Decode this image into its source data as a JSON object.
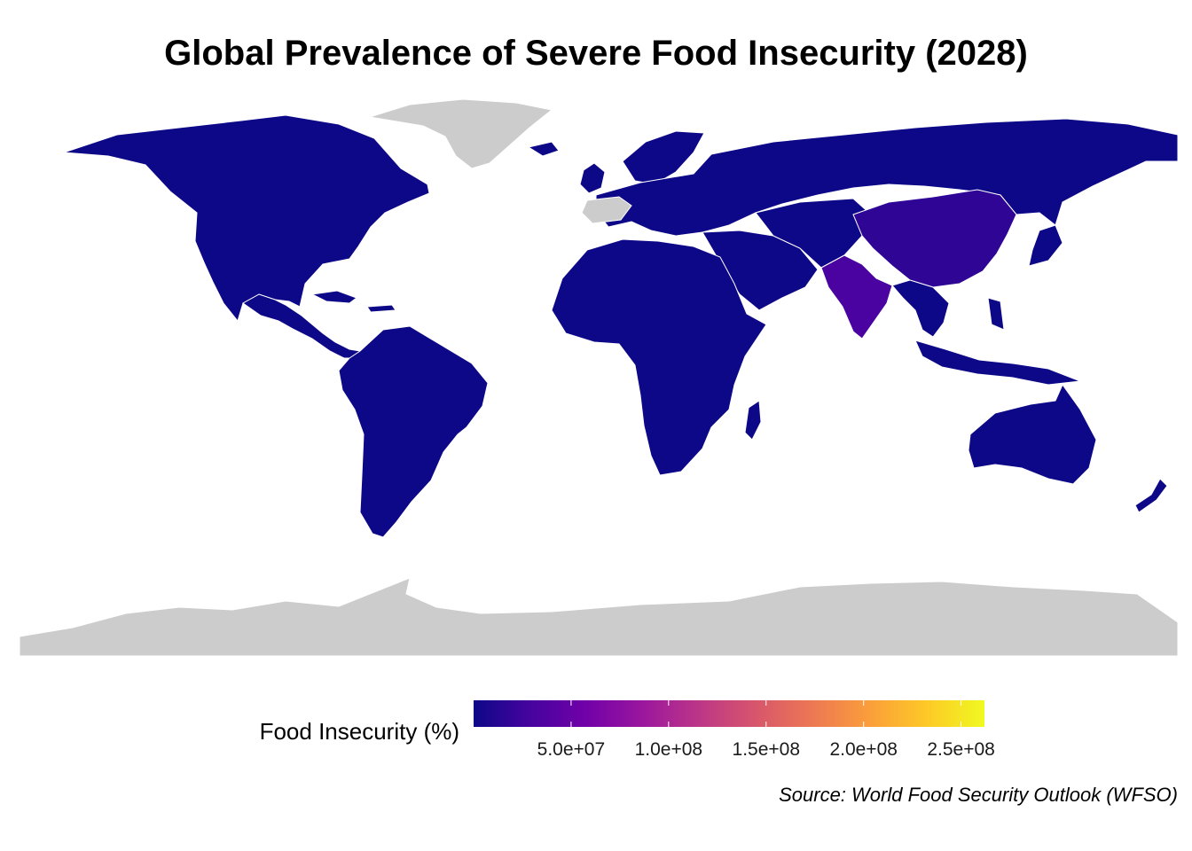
{
  "title": "Global Prevalence of Severe Food Insecurity (2028)",
  "caption": "Source: World Food Security Outlook (WFSO)",
  "legend": {
    "title": "Food Insecurity (%)",
    "palette": "plasma",
    "colors": [
      "#0d0887",
      "#46039f",
      "#7201a8",
      "#9c179e",
      "#bd3786",
      "#d8576b",
      "#ed7953",
      "#fb9f3a",
      "#fdca26",
      "#f0f921"
    ],
    "min": 0,
    "max": 262000000,
    "ticks": [
      {
        "value": 50000000,
        "label": "5.0e+07"
      },
      {
        "value": 100000000,
        "label": "1.0e+08"
      },
      {
        "value": 150000000,
        "label": "1.5e+08"
      },
      {
        "value": 200000000,
        "label": "2.0e+08"
      },
      {
        "value": 250000000,
        "label": "2.5e+08"
      }
    ]
  },
  "colors": {
    "no_data": "#cccccc",
    "border": "#ffffff",
    "low": "#0d0887",
    "china": "#2f0596",
    "india": "#4a02a0"
  }
}
